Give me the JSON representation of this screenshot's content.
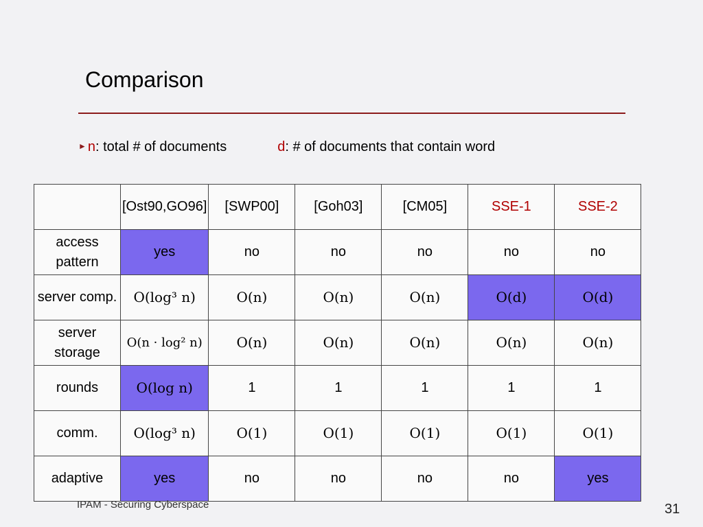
{
  "title": "Comparison",
  "definitions": {
    "n_var": "n",
    "n_text": ": total # of documents",
    "d_var": "d",
    "d_text": ": # of documents that contain word"
  },
  "table": {
    "header": [
      "",
      "[Ost90,GO96]",
      "[SWP00]",
      "[Goh03]",
      "[CM05]",
      "SSE-1",
      "SSE-2"
    ],
    "rows": [
      {
        "label": "access pattern",
        "cells": [
          "yes",
          "no",
          "no",
          "no",
          "no",
          "no"
        ]
      },
      {
        "label": "server comp.",
        "cells": [
          "O(log³ n)",
          "O(n)",
          "O(n)",
          "O(n)",
          "O(d)",
          "O(d)"
        ]
      },
      {
        "label": "server storage",
        "cells": [
          "O(n · log² n)",
          "O(n)",
          "O(n)",
          "O(n)",
          "O(n)",
          "O(n)"
        ]
      },
      {
        "label": "rounds",
        "cells": [
          "O(log n)",
          "1",
          "1",
          "1",
          "1",
          "1"
        ]
      },
      {
        "label": "comm.",
        "cells": [
          "O(log³ n)",
          "O(1)",
          "O(1)",
          "O(1)",
          "O(1)",
          "O(1)"
        ]
      },
      {
        "label": "adaptive",
        "cells": [
          "yes",
          "no",
          "no",
          "no",
          "no",
          "yes"
        ]
      }
    ]
  },
  "colors": {
    "highlight": "#7b68ee",
    "accent_red": "#b00000",
    "rule": "#8b1a1a"
  },
  "footer": "IPAM - Securing Cyberspace",
  "page_number": "31"
}
